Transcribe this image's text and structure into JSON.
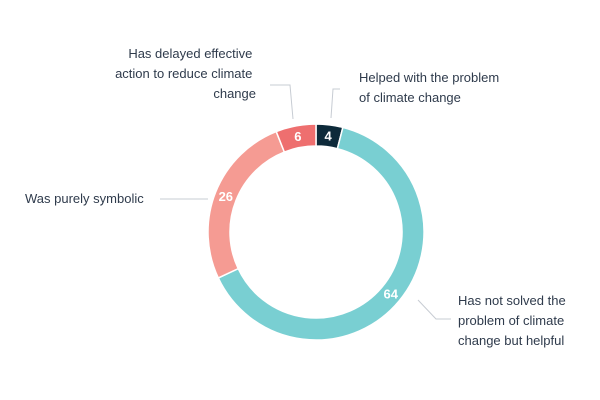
{
  "chart_data": {
    "type": "pie",
    "donut": true,
    "total": 100,
    "slices": [
      {
        "label": "Helped with the problem of climate change",
        "value": 4,
        "color": "#0d2a3a"
      },
      {
        "label": "Has not solved the problem of climate change but helpful",
        "value": 64,
        "color": "#79cfd2"
      },
      {
        "label": "Was purely symbolic",
        "value": 26,
        "color": "#f59b93"
      },
      {
        "label": "Has delayed effective action to reduce climate change",
        "value": 6,
        "color": "#ee6f6f"
      }
    ],
    "value_labels": [
      "4",
      "64",
      "26",
      "6"
    ],
    "legend": "callout-labels"
  }
}
